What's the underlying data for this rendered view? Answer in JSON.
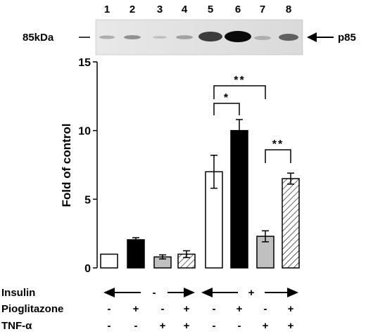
{
  "blot": {
    "lanes": [
      "1",
      "2",
      "3",
      "4",
      "5",
      "6",
      "7",
      "8"
    ],
    "marker_label": "85kDa",
    "band_label": "p85"
  },
  "conditions": [
    {
      "name": "Insulin",
      "signs": [
        "-",
        "-",
        "-",
        "-",
        "+",
        "+",
        "+",
        "+"
      ],
      "display": "arrows"
    },
    {
      "name": "Pioglitazone",
      "signs": [
        "-",
        "+",
        "-",
        "+",
        "-",
        "+",
        "-",
        "+"
      ]
    },
    {
      "name": "TNF-α",
      "signs": [
        "-",
        "-",
        "+",
        "+",
        "-",
        "-",
        "+",
        "+"
      ]
    }
  ],
  "insulin_minus": "-",
  "insulin_plus": "+",
  "chart_data": {
    "type": "bar",
    "categories": [
      "1",
      "2",
      "3",
      "4",
      "5",
      "6",
      "7",
      "8"
    ],
    "values": [
      1.0,
      2.05,
      0.8,
      1.0,
      7.0,
      10.0,
      2.3,
      6.5
    ],
    "errors": [
      0.0,
      0.15,
      0.15,
      0.25,
      1.2,
      0.8,
      0.4,
      0.4
    ],
    "fills": [
      "white",
      "black",
      "gray",
      "hatched",
      "white",
      "black",
      "gray",
      "hatched"
    ],
    "colors": {
      "white": "#ffffff",
      "black": "#000000",
      "gray": "#c0c0c0",
      "hatched": "#ffffff"
    },
    "ylabel": "Fold of control",
    "ylim": [
      0,
      15
    ],
    "yticks": [
      0,
      5,
      10,
      15
    ],
    "significance": [
      {
        "from": 5,
        "to": 6,
        "label": "*"
      },
      {
        "from": 5,
        "to": 7,
        "label": "**"
      },
      {
        "from": 7,
        "to": 8,
        "label": "**"
      }
    ]
  }
}
